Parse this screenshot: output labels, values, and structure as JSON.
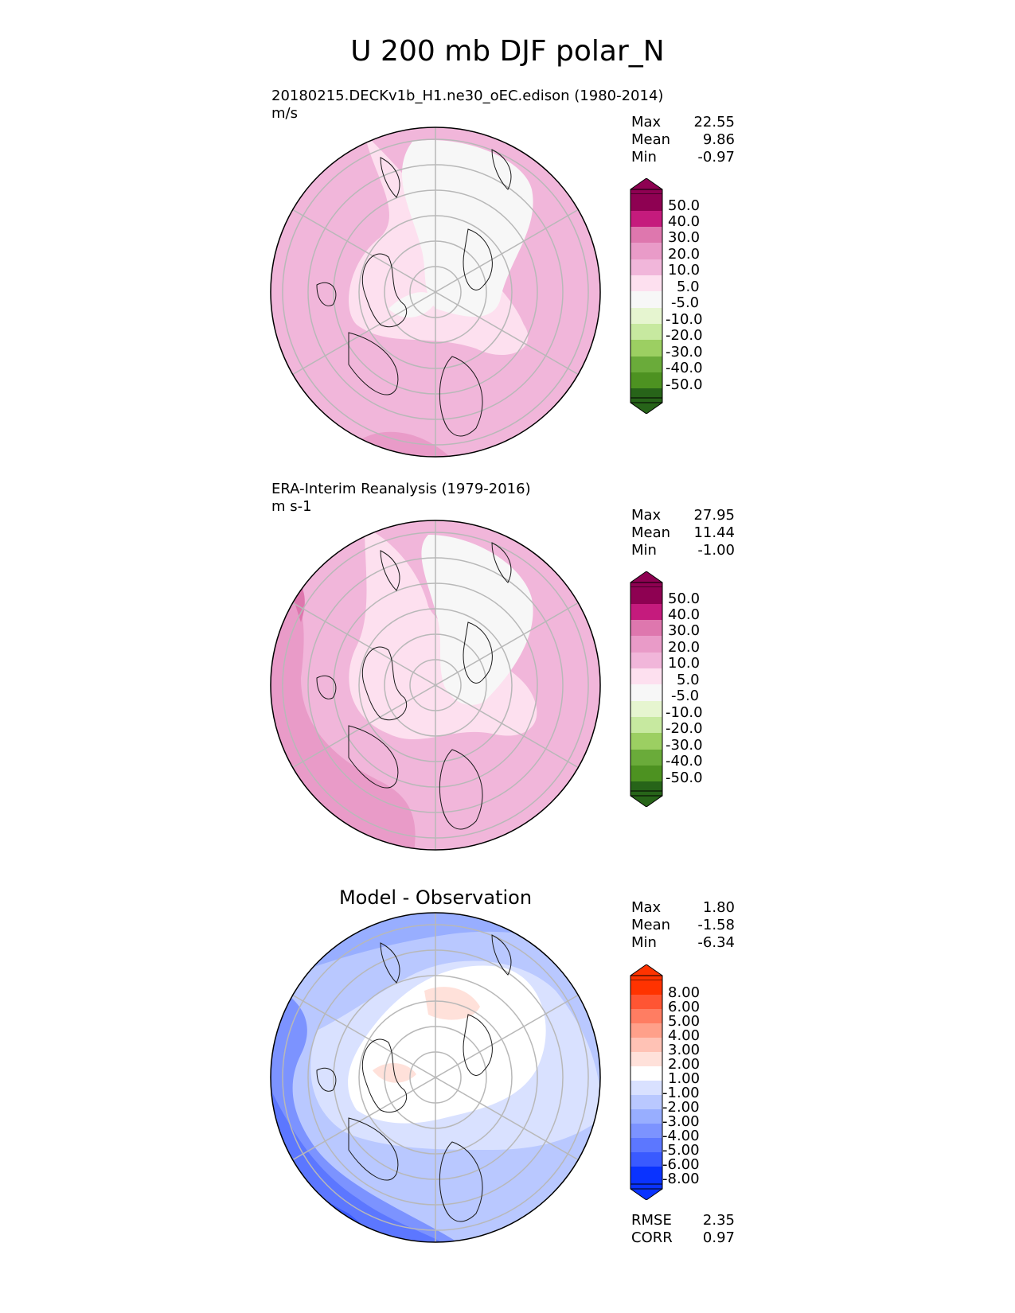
{
  "title": "U 200 mb DJF polar_N",
  "colors": {
    "grid": "#b8b8b8",
    "coast": "#1a1a1a",
    "field_levels_fill": [
      "#8e0152",
      "#c51b7d",
      "#de77ae",
      "#e99bc8",
      "#f1b6da",
      "#fde0ef",
      "#f7f7f7",
      "#e6f5d0",
      "#c7e9a0",
      "#9ccf62",
      "#6aab3a",
      "#4d9221",
      "#276419"
    ],
    "diff_levels_fill": [
      "#ff3300",
      "#ff5533",
      "#ff7d62",
      "#ffa08a",
      "#ffc2b5",
      "#ffe1da",
      "#ffffff",
      "#d9e1ff",
      "#b9c8ff",
      "#98aeff",
      "#7c93ff",
      "#5c77ff",
      "#3a5aff",
      "#0a33ff"
    ]
  },
  "panels": [
    {
      "id": "test",
      "title_line1": "20180215.DECKv1b_H1.ne30_oEC.edison (1980-2014)",
      "title_line2": "m/s",
      "stats": [
        {
          "label": "Max",
          "value": "22.55"
        },
        {
          "label": "Mean",
          "value": "9.86"
        },
        {
          "label": "Min",
          "value": "-0.97"
        }
      ],
      "colorbar_labels": [
        "50.0",
        "40.0",
        "30.0",
        "20.0",
        "10.0",
        "5.0",
        "-5.0",
        "-10.0",
        "-20.0",
        "-30.0",
        "-40.0",
        "-50.0"
      ]
    },
    {
      "id": "reference",
      "title_line1": "ERA-Interim Reanalysis (1979-2016)",
      "title_line2": "m s-1",
      "stats": [
        {
          "label": "Max",
          "value": "27.95"
        },
        {
          "label": "Mean",
          "value": "11.44"
        },
        {
          "label": "Min",
          "value": "-1.00"
        }
      ],
      "colorbar_labels": [
        "50.0",
        "40.0",
        "30.0",
        "20.0",
        "10.0",
        "5.0",
        "-5.0",
        "-10.0",
        "-20.0",
        "-30.0",
        "-40.0",
        "-50.0"
      ]
    },
    {
      "id": "diff",
      "title": "Model - Observation",
      "stats": [
        {
          "label": "Max",
          "value": "1.80"
        },
        {
          "label": "Mean",
          "value": "-1.58"
        },
        {
          "label": "Min",
          "value": "-6.34"
        }
      ],
      "colorbar_labels": [
        "8.00",
        "6.00",
        "5.00",
        "4.00",
        "3.00",
        "2.00",
        "1.00",
        "-1.00",
        "-2.00",
        "-3.00",
        "-4.00",
        "-5.00",
        "-6.00",
        "-8.00"
      ],
      "metrics": [
        {
          "label": "RMSE",
          "value": "2.35"
        },
        {
          "label": "CORR",
          "value": "0.97"
        }
      ]
    }
  ]
}
